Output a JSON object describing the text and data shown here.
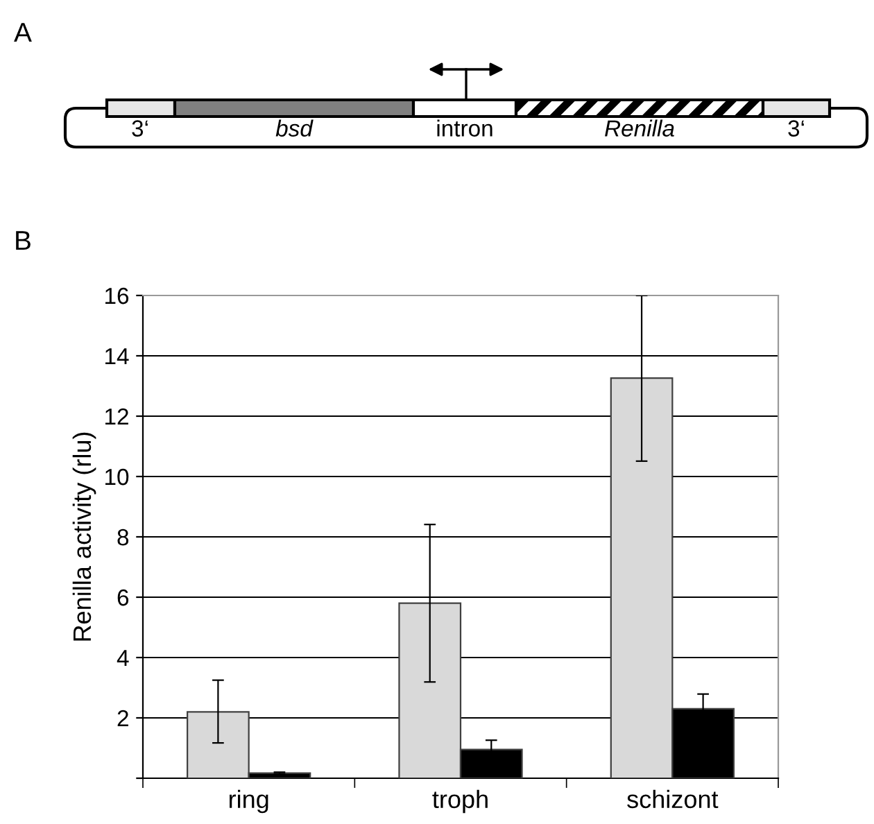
{
  "chart_data": [
    {
      "type": "other",
      "title": "A",
      "annotations": [
        "3‘",
        "bsd",
        "intron",
        "Renilla",
        "3‘"
      ]
    },
    {
      "type": "bar",
      "title": "B",
      "ylabel": "Renilla activity (rlu)",
      "categories": [
        "ring",
        "troph",
        "schizont"
      ],
      "series": [
        {
          "color": "#d9d9d9",
          "values": [
            2.2,
            5.8,
            13.26
          ],
          "errors": [
            [
              1.17,
              3.25
            ],
            [
              3.19,
              8.41
            ],
            [
              10.51,
              16.0
            ]
          ]
        },
        {
          "color": "#000000",
          "values": [
            0.17,
            0.95,
            2.3
          ],
          "errors": [
            0.03,
            0.31,
            0.49
          ]
        }
      ],
      "ylim": [
        0,
        16
      ],
      "yticks": [
        {
          "value": 0,
          "label": null
        },
        2,
        4,
        6,
        8,
        10,
        12,
        14,
        16
      ],
      "grid": "y",
      "legend": false
    }
  ]
}
